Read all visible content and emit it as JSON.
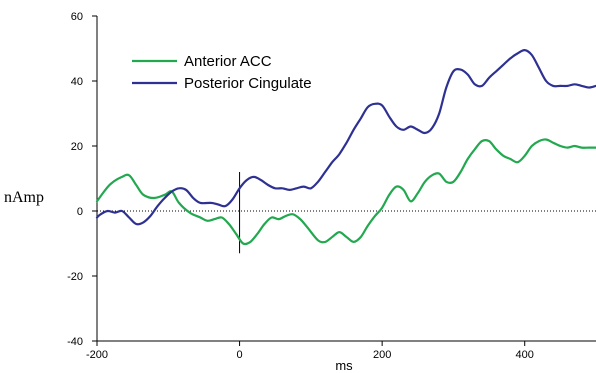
{
  "chart_data": {
    "type": "line",
    "xlabel": "ms",
    "ylabel": "nAmp",
    "xlim": [
      -200,
      500
    ],
    "ylim": [
      -40,
      60
    ],
    "xticks": [
      -200,
      0,
      200,
      400
    ],
    "yticks": [
      -40,
      -20,
      0,
      20,
      40,
      60
    ],
    "legend_position": "top-left",
    "grid": false,
    "zero_line": "dotted",
    "series": [
      {
        "name": "Anterior ACC",
        "color": "#22a84f",
        "points": [
          [
            -200,
            3
          ],
          [
            -190,
            6
          ],
          [
            -180,
            8.5
          ],
          [
            -165,
            10.5
          ],
          [
            -155,
            11
          ],
          [
            -145,
            8
          ],
          [
            -135,
            5
          ],
          [
            -120,
            4
          ],
          [
            -105,
            5
          ],
          [
            -95,
            6
          ],
          [
            -85,
            2.5
          ],
          [
            -70,
            -0.5
          ],
          [
            -55,
            -2
          ],
          [
            -45,
            -3
          ],
          [
            -35,
            -2.5
          ],
          [
            -25,
            -2
          ],
          [
            -15,
            -4
          ],
          [
            -5,
            -7
          ],
          [
            5,
            -10
          ],
          [
            15,
            -9.5
          ],
          [
            25,
            -7
          ],
          [
            35,
            -4
          ],
          [
            45,
            -2
          ],
          [
            55,
            -2.5
          ],
          [
            65,
            -1.5
          ],
          [
            75,
            -1
          ],
          [
            85,
            -2.5
          ],
          [
            95,
            -5
          ],
          [
            110,
            -9
          ],
          [
            120,
            -9.5
          ],
          [
            130,
            -8
          ],
          [
            140,
            -6.5
          ],
          [
            150,
            -8
          ],
          [
            160,
            -9.5
          ],
          [
            170,
            -8
          ],
          [
            180,
            -4.5
          ],
          [
            190,
            -1.5
          ],
          [
            200,
            1
          ],
          [
            210,
            5
          ],
          [
            220,
            7.5
          ],
          [
            230,
            6.5
          ],
          [
            240,
            3
          ],
          [
            250,
            5.5
          ],
          [
            260,
            9
          ],
          [
            270,
            11
          ],
          [
            280,
            11.5
          ],
          [
            290,
            9
          ],
          [
            300,
            9
          ],
          [
            310,
            12
          ],
          [
            320,
            16
          ],
          [
            330,
            19
          ],
          [
            340,
            21.5
          ],
          [
            350,
            21.5
          ],
          [
            360,
            19
          ],
          [
            370,
            17
          ],
          [
            380,
            16
          ],
          [
            390,
            15
          ],
          [
            400,
            17
          ],
          [
            410,
            20
          ],
          [
            420,
            21.5
          ],
          [
            430,
            22
          ],
          [
            440,
            21
          ],
          [
            450,
            20
          ],
          [
            460,
            19.5
          ],
          [
            470,
            20
          ],
          [
            480,
            19.5
          ],
          [
            490,
            19.5
          ],
          [
            500,
            19.5
          ]
        ]
      },
      {
        "name": "Posterior Cingulate",
        "color": "#2e3192",
        "points": [
          [
            -200,
            -2
          ],
          [
            -195,
            -1
          ],
          [
            -185,
            0
          ],
          [
            -175,
            -0.5
          ],
          [
            -165,
            0
          ],
          [
            -155,
            -2
          ],
          [
            -145,
            -4
          ],
          [
            -135,
            -3.5
          ],
          [
            -125,
            -1.5
          ],
          [
            -115,
            1.5
          ],
          [
            -105,
            4
          ],
          [
            -95,
            6
          ],
          [
            -85,
            7
          ],
          [
            -75,
            6.5
          ],
          [
            -65,
            4
          ],
          [
            -55,
            2.5
          ],
          [
            -40,
            2.5
          ],
          [
            -30,
            2
          ],
          [
            -20,
            1.5
          ],
          [
            -10,
            3.5
          ],
          [
            0,
            7
          ],
          [
            10,
            9.5
          ],
          [
            20,
            10.5
          ],
          [
            30,
            9.5
          ],
          [
            40,
            8
          ],
          [
            50,
            7
          ],
          [
            60,
            7
          ],
          [
            70,
            6.5
          ],
          [
            80,
            7
          ],
          [
            90,
            7.5
          ],
          [
            100,
            7
          ],
          [
            110,
            9
          ],
          [
            120,
            12
          ],
          [
            130,
            15
          ],
          [
            140,
            17.5
          ],
          [
            150,
            21
          ],
          [
            160,
            25
          ],
          [
            170,
            28.5
          ],
          [
            180,
            32
          ],
          [
            190,
            33
          ],
          [
            200,
            32.5
          ],
          [
            210,
            29
          ],
          [
            220,
            26
          ],
          [
            230,
            25
          ],
          [
            240,
            26
          ],
          [
            250,
            25
          ],
          [
            260,
            24
          ],
          [
            270,
            25.5
          ],
          [
            280,
            30
          ],
          [
            290,
            38
          ],
          [
            300,
            43
          ],
          [
            310,
            43.5
          ],
          [
            320,
            42
          ],
          [
            330,
            39
          ],
          [
            340,
            38.5
          ],
          [
            350,
            41
          ],
          [
            360,
            43
          ],
          [
            370,
            45
          ],
          [
            380,
            47
          ],
          [
            390,
            48.5
          ],
          [
            400,
            49.5
          ],
          [
            410,
            48
          ],
          [
            420,
            44
          ],
          [
            430,
            40
          ],
          [
            440,
            38.5
          ],
          [
            450,
            38.5
          ],
          [
            460,
            38.5
          ],
          [
            470,
            39
          ],
          [
            480,
            38.5
          ],
          [
            490,
            38
          ],
          [
            500,
            38.5
          ]
        ]
      }
    ],
    "stimulus_marker": {
      "x": 0,
      "y_range": [
        -13,
        12
      ]
    }
  }
}
